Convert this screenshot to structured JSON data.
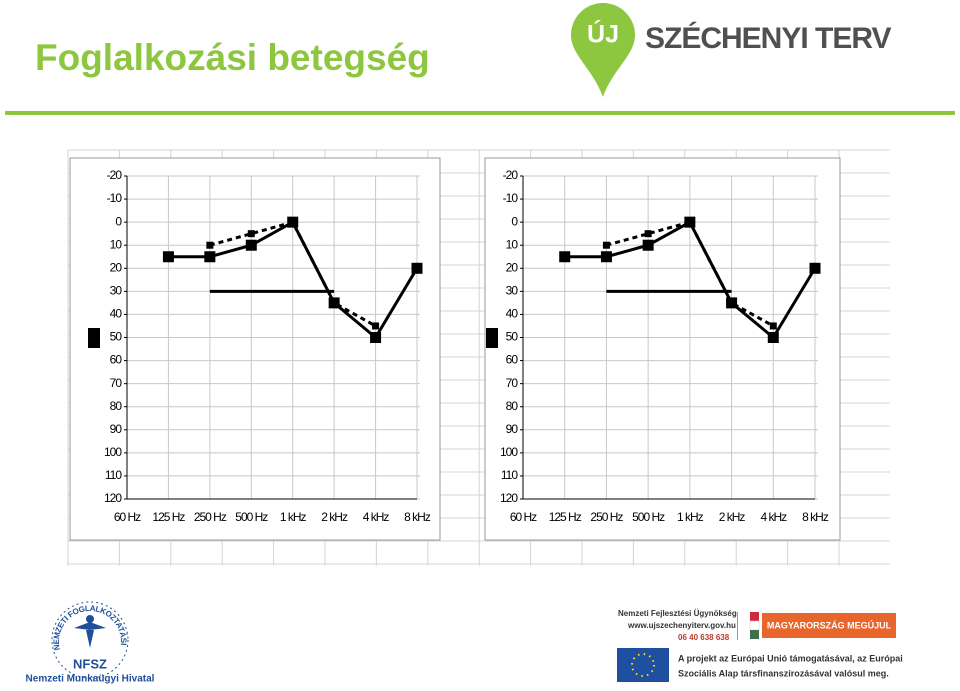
{
  "header": {
    "title": "Foglalkozási betegség",
    "logo_badge": "ÚJ",
    "logo_text": "SZÉCHENYI TERV"
  },
  "chart_data": [
    {
      "type": "line",
      "categories": [
        "60 Hz",
        "125 Hz",
        "250 Hz",
        "500 Hz",
        "1 kHz",
        "2 kHz",
        "4 kHz",
        "8 kHz"
      ],
      "ylim": [
        -20,
        120
      ],
      "yticks": [
        -20,
        -10,
        0,
        10,
        20,
        30,
        40,
        50,
        60,
        70,
        80,
        90,
        100,
        110,
        120
      ],
      "y_reversed": true,
      "grid": true,
      "series": [
        {
          "color": "#000000",
          "dashed": false,
          "markers": true,
          "values": [
            null,
            15,
            15,
            10,
            0,
            35,
            50,
            20
          ]
        },
        {
          "color": "#000000",
          "dashed": true,
          "markers": true,
          "values": [
            null,
            null,
            10,
            5,
            0,
            35,
            45,
            null
          ]
        },
        {
          "color": "#000000",
          "dashed": false,
          "markers": false,
          "values": [
            null,
            null,
            30,
            30,
            30,
            30,
            null,
            null
          ]
        }
      ]
    },
    {
      "type": "line",
      "categories": [
        "60 Hz",
        "125 Hz",
        "250 Hz",
        "500 Hz",
        "1 kHz",
        "2 kHz",
        "4 kHz",
        "8 kHz"
      ],
      "ylim": [
        -20,
        120
      ],
      "yticks": [
        -20,
        -10,
        0,
        10,
        20,
        30,
        40,
        50,
        60,
        70,
        80,
        90,
        100,
        110,
        120
      ],
      "y_reversed": true,
      "grid": true,
      "series": [
        {
          "color": "#000000",
          "dashed": false,
          "markers": true,
          "values": [
            null,
            15,
            15,
            10,
            0,
            35,
            50,
            20
          ]
        },
        {
          "color": "#000000",
          "dashed": true,
          "markers": true,
          "values": [
            null,
            null,
            10,
            5,
            0,
            35,
            45,
            null
          ]
        },
        {
          "color": "#000000",
          "dashed": false,
          "markers": false,
          "values": [
            null,
            null,
            30,
            30,
            30,
            30,
            null,
            null
          ]
        }
      ]
    }
  ],
  "footer": {
    "nfsz_ring": "NEMZETI FOGLALKOZTATÁSI SZOLGÁLAT",
    "nfsz_short": "NFSZ",
    "nfsz_name": "Nemzeti Munkaügyi Hivatal",
    "nfu_name": "Nemzeti Fejlesztési Ügynökség",
    "nfu_url": "www.ujszechenyiterv.gov.hu",
    "nfu_phone": "06 40 638 638",
    "slogan": "MAGYARORSZÁG MEGÚJUL",
    "eu_line1": "A projekt az Európai Unió támogatásával, az Európai",
    "eu_line2": "Szociális Alap társfinanszírozásával valósul meg."
  }
}
